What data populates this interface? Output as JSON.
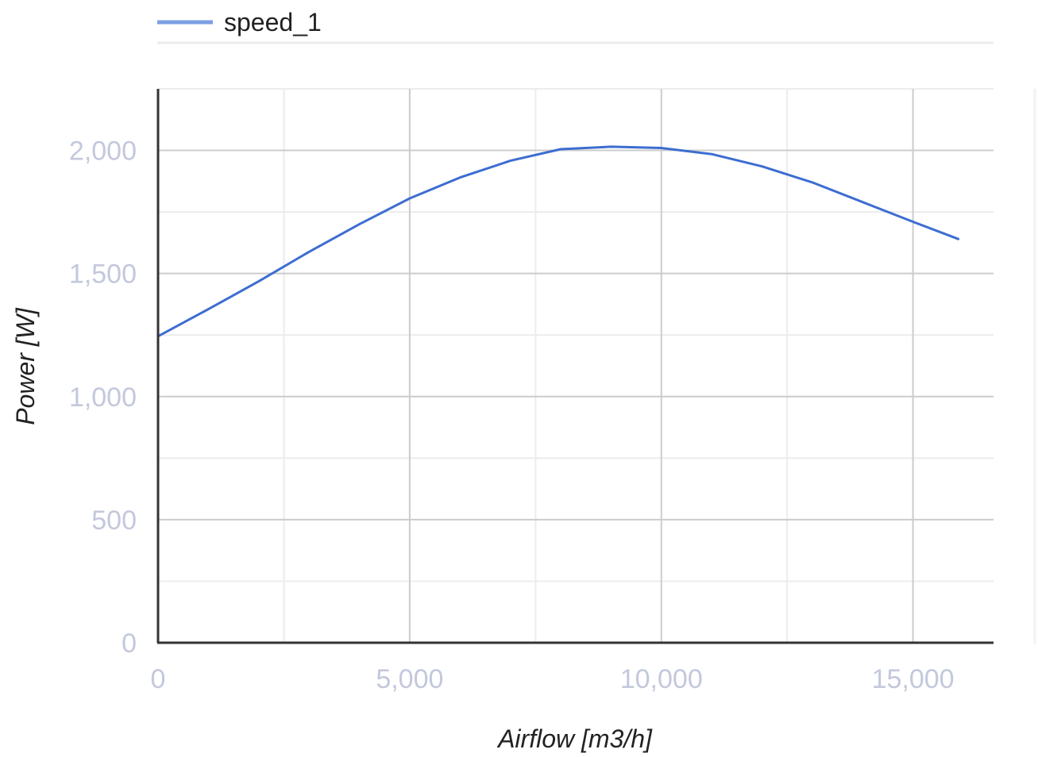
{
  "chart_data": {
    "type": "line",
    "title": "",
    "xlabel": "Airflow [m3/h]",
    "ylabel": "Power [W]",
    "xlim": [
      0,
      16600
    ],
    "ylim": [
      0,
      2250
    ],
    "x_ticks": [
      0,
      5000,
      10000,
      15000
    ],
    "x_tick_labels": [
      "0",
      "5,000",
      "10,000",
      "15,000"
    ],
    "y_ticks": [
      0,
      500,
      1000,
      1500,
      2000
    ],
    "y_tick_labels": [
      "0",
      "500",
      "1,000",
      "1,500",
      "2,000"
    ],
    "minor_x_ticks": [
      2500,
      7500,
      12500
    ],
    "minor_y_ticks": [
      250,
      750,
      1250,
      1750,
      2250
    ],
    "grid": true,
    "legend_position": "top",
    "series": [
      {
        "name": "speed_1",
        "color": "#3d6dd1",
        "x": [
          0,
          1000,
          2000,
          3000,
          4000,
          5000,
          6000,
          7000,
          8000,
          9000,
          10000,
          11000,
          12000,
          13000,
          14000,
          15000,
          15900
        ],
        "y": [
          1245,
          1355,
          1468,
          1588,
          1700,
          1805,
          1890,
          1958,
          2005,
          2015,
          2010,
          1985,
          1935,
          1870,
          1790,
          1710,
          1640
        ]
      }
    ]
  }
}
